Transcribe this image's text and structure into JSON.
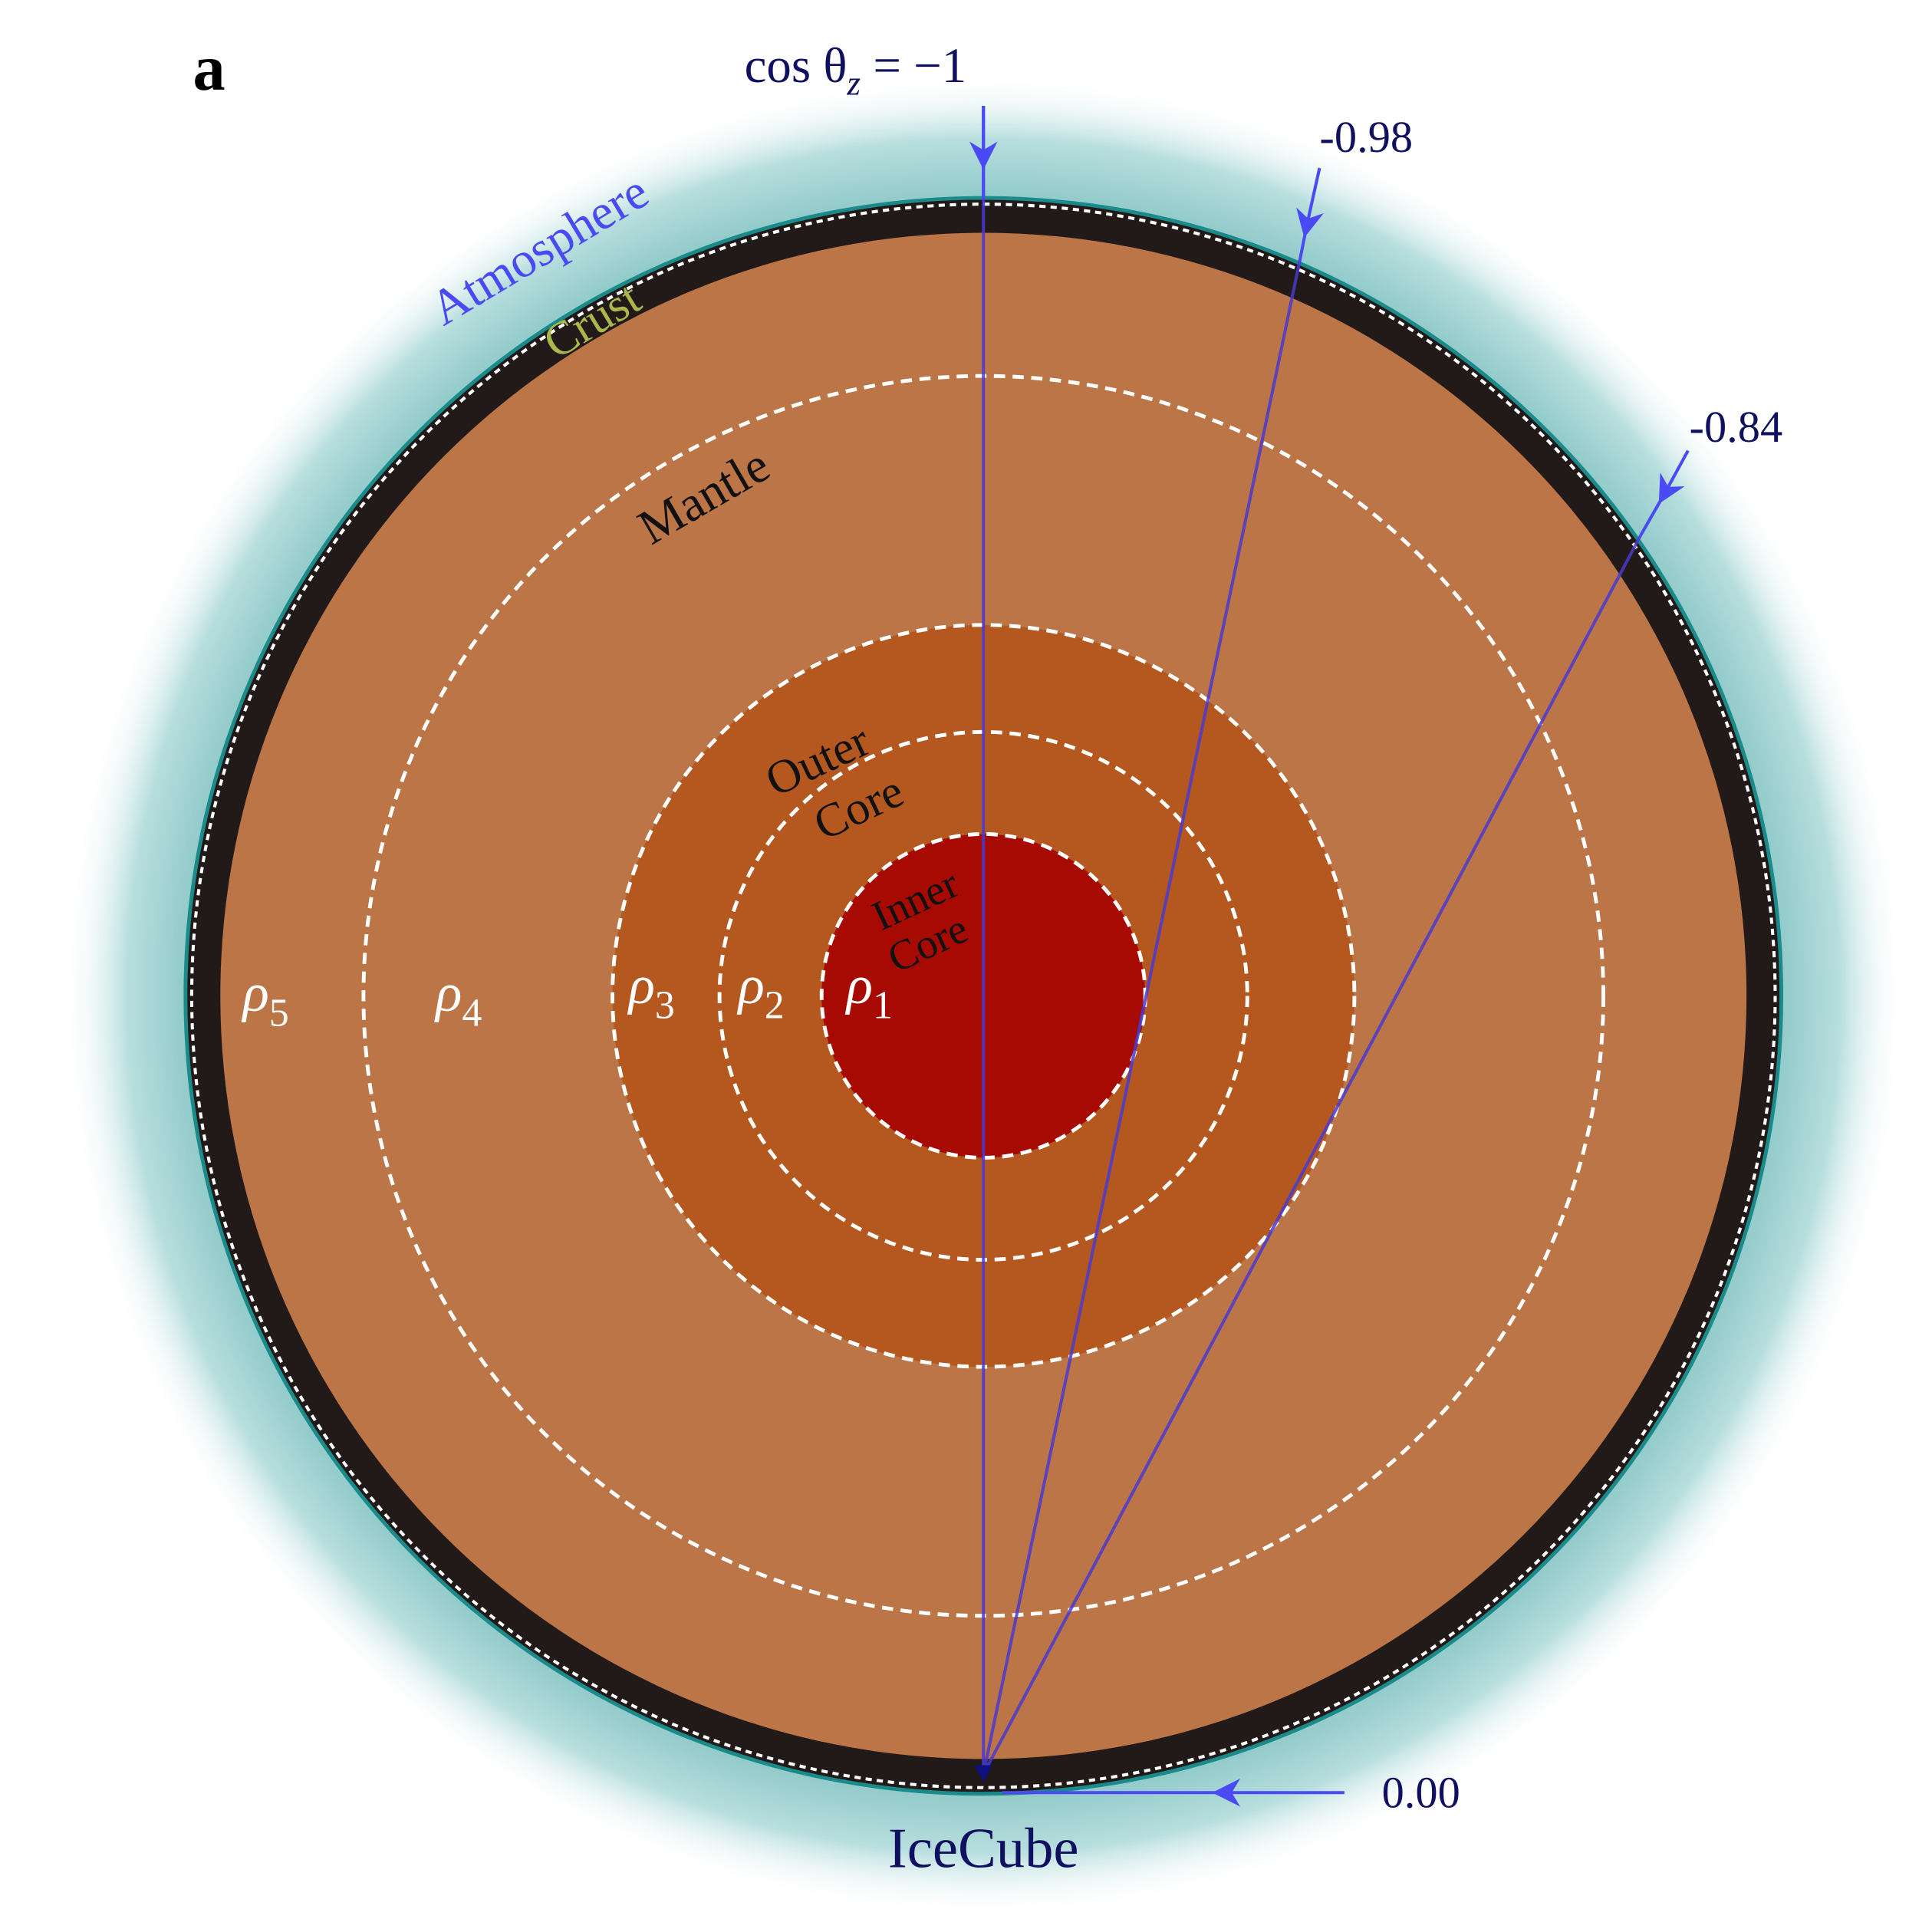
{
  "panel_label": "a",
  "layers": {
    "atmosphere": "Atmosphere",
    "crust": "Crust",
    "mantle": "Mantle",
    "outer_core": [
      "Outer",
      "Core"
    ],
    "inner_core": [
      "Inner",
      "Core"
    ]
  },
  "densities": [
    {
      "symbol": "ρ",
      "index": "5"
    },
    {
      "symbol": "ρ",
      "index": "4"
    },
    {
      "symbol": "ρ",
      "index": "3"
    },
    {
      "symbol": "ρ",
      "index": "2"
    },
    {
      "symbol": "ρ",
      "index": "1"
    }
  ],
  "rays": [
    {
      "prefix": "cos θ",
      "sub": "z",
      "suffix": " = −1"
    },
    {
      "label": "-0.98"
    },
    {
      "label": "-0.84"
    },
    {
      "label": "0.00"
    }
  ],
  "detector": "IceCube"
}
